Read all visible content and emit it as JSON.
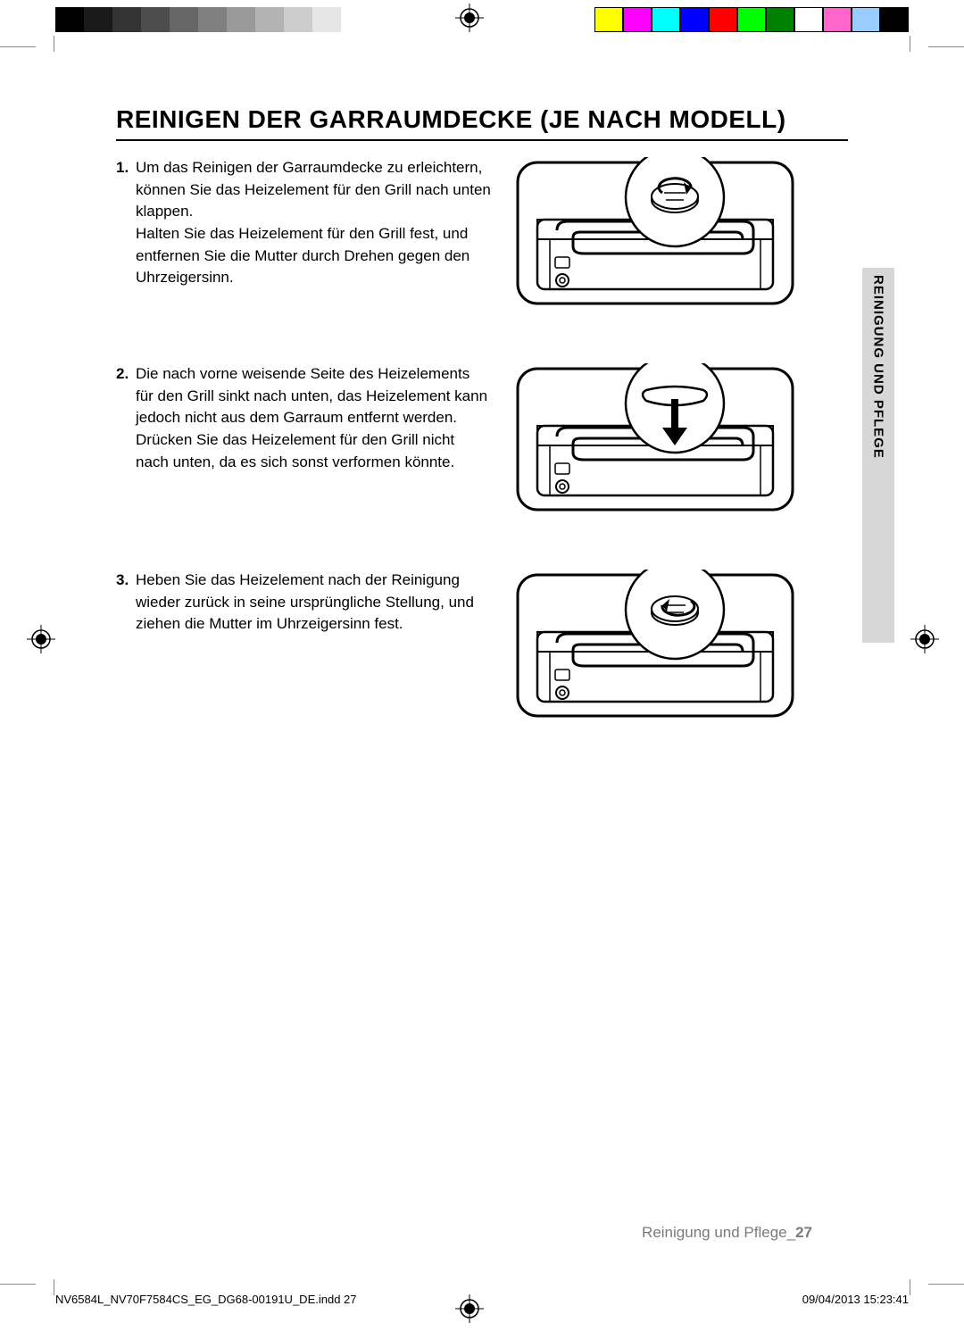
{
  "colorbar": {
    "grays": [
      "#000000",
      "#1a1a1a",
      "#333333",
      "#4d4d4d",
      "#666666",
      "#808080",
      "#999999",
      "#b3b3b3",
      "#cccccc",
      "#e6e6e6",
      "#ffffff"
    ],
    "colors": [
      "#ffff00",
      "#ff00ff",
      "#00ffff",
      "#0000ff",
      "#ff0000",
      "#00ff00",
      "#008000",
      "#ffffff",
      "#ff66cc",
      "#99ccff",
      "#000000"
    ]
  },
  "title": "REINIGEN DER GARRAUMDECKE (JE NACH MODELL)",
  "steps": [
    {
      "num": "1.",
      "text": "Um das Reinigen der Garraumdecke zu erleichtern, können Sie das Heizelement für den Grill nach unten klappen.\nHalten Sie das Heizelement für den Grill fest, und entfernen Sie die Mutter durch Drehen gegen den Uhrzeigersinn."
    },
    {
      "num": "2.",
      "text": "Die nach vorne weisende Seite des Heizelements für den Grill sinkt nach unten, das Heizelement kann jedoch nicht aus dem Garraum entfernt werden. Drücken Sie das Heizelement für den Grill nicht nach unten, da es sich sonst verformen könnte."
    },
    {
      "num": "3.",
      "text": "Heben Sie das Heizelement nach der Reinigung wieder zurück in seine ursprüngliche Stellung, und ziehen die Mutter im Uhrzeigersinn fest."
    }
  ],
  "sidetab": "REINIGUNG UND PFLEGE",
  "footer": {
    "section": "Reinigung und Pflege_",
    "page": "27"
  },
  "imprint": {
    "file": "NV6584L_NV70F7584CS_EG_DG68-00191U_DE.indd   27",
    "date": "09/04/2013   15:23:41"
  }
}
